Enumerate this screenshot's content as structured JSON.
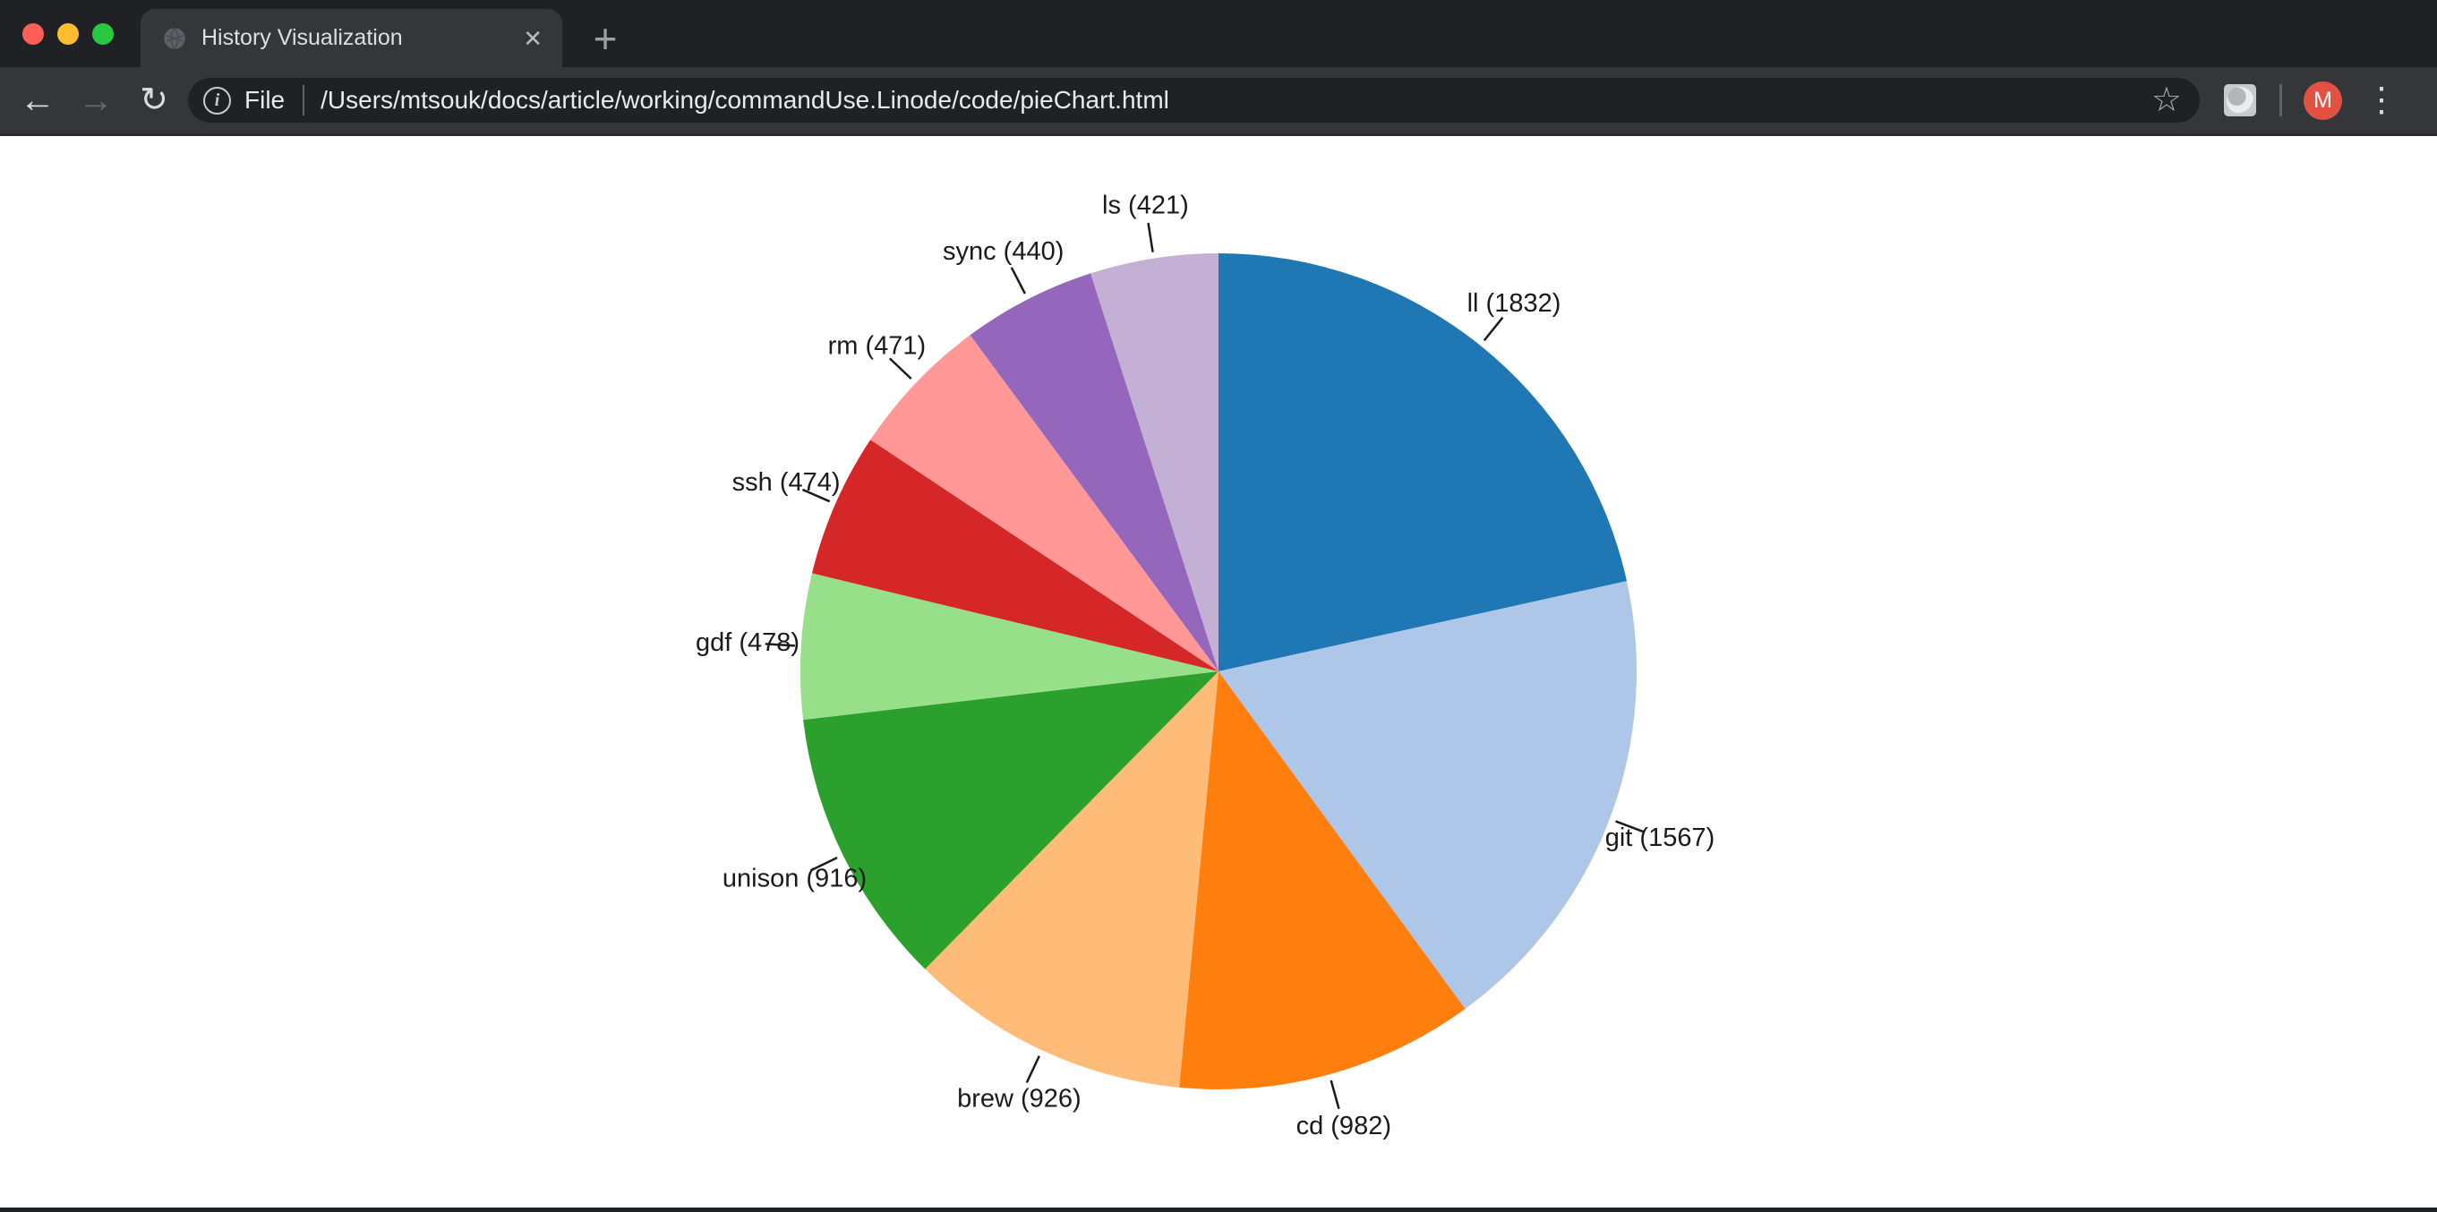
{
  "browser": {
    "tab": {
      "title": "History Visualization",
      "close_glyph": "✕",
      "new_tab_glyph": "+"
    },
    "traffic_lights": {
      "close": "#FF5F57",
      "minimize": "#FEBC2E",
      "zoom": "#28C841"
    },
    "nav": {
      "back_glyph": "←",
      "forward_glyph": "→",
      "reload_glyph": "↻"
    },
    "address": {
      "scheme_label": "File",
      "url": "/Users/mtsouk/docs/article/working/commandUse.Linode/code/pieChart.html",
      "info_glyph": "i",
      "bookmark_star_glyph": "☆"
    },
    "profile": {
      "initial": "M",
      "color": "#E25141"
    },
    "menu_glyph": "⋮"
  },
  "chart_data": {
    "type": "pie",
    "label_format": "{label} ({value})",
    "start_angle_deg": 0,
    "direction": "clockwise",
    "legend_position": "none",
    "grid": false,
    "total": 8507,
    "series": [
      {
        "label": "ll",
        "value": 1832,
        "color": "#1f77b4"
      },
      {
        "label": "git",
        "value": 1567,
        "color": "#aec7e8"
      },
      {
        "label": "cd",
        "value": 982,
        "color": "#ff7f0e"
      },
      {
        "label": "brew",
        "value": 926,
        "color": "#ffbb78"
      },
      {
        "label": "unison",
        "value": 916,
        "color": "#2ca02c"
      },
      {
        "label": "gdf",
        "value": 478,
        "color": "#98df8a"
      },
      {
        "label": "ssh",
        "value": 474,
        "color": "#d62728"
      },
      {
        "label": "rm",
        "value": 471,
        "color": "#ff9896"
      },
      {
        "label": "sync",
        "value": 440,
        "color": "#9467bd"
      },
      {
        "label": "ls",
        "value": 421,
        "color": "#c5b0d5"
      }
    ],
    "geometry": {
      "cx": 1361,
      "cy": 598,
      "radius": 467,
      "tick_r1": 474,
      "tick_r2": 507,
      "label_r": 527
    }
  }
}
